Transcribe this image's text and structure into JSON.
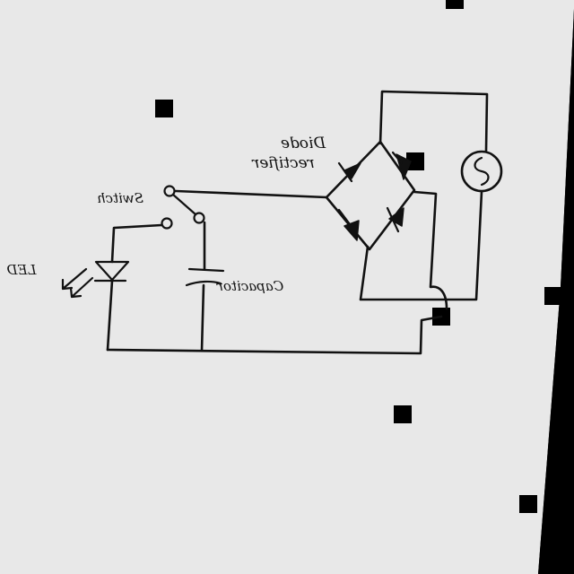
{
  "labels": {
    "diode_line1": "Diode",
    "diode_line2": "rectifier",
    "switch": "Switch",
    "led": "LED",
    "capacitor": "Capacitor"
  },
  "colors": {
    "paper": "#e8e8e8",
    "ink": "#111111",
    "border": "#000000"
  },
  "icons": {
    "ac_source": "sine-wave-icon",
    "diode": "diode-triangle-icon",
    "led": "led-arrows-icon",
    "capacitor": "capacitor-plates-icon",
    "switch": "switch-terminals-icon"
  }
}
